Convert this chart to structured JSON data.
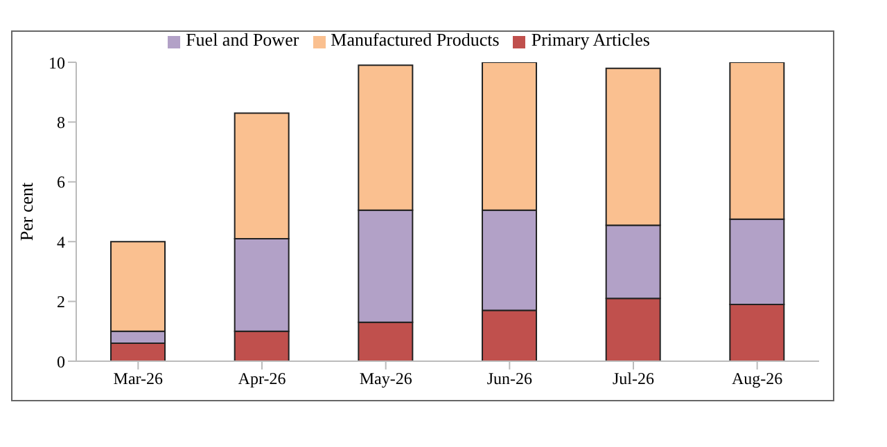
{
  "chart_data": {
    "type": "bar",
    "stacked": true,
    "ylabel": "Per cent",
    "categories": [
      "Mar-26",
      "Apr-26",
      "May-26",
      "Jun-26",
      "Jul-26",
      "Aug-26"
    ],
    "series": [
      {
        "name": "Primary Articles",
        "color": "#c0504d",
        "values": [
          0.6,
          1.0,
          1.3,
          1.7,
          2.1,
          1.9
        ]
      },
      {
        "name": "Fuel and Power",
        "color": "#b2a1c7",
        "values": [
          0.4,
          3.1,
          3.75,
          3.35,
          2.45,
          2.85
        ]
      },
      {
        "name": "Manufactured Products",
        "color": "#fac090",
        "values": [
          3.0,
          4.2,
          4.85,
          4.95,
          5.25,
          5.25
        ]
      }
    ],
    "ylim": [
      0,
      10
    ],
    "yticks": [
      0,
      2,
      4,
      6,
      8,
      10
    ],
    "grid": false,
    "legend": "top"
  }
}
